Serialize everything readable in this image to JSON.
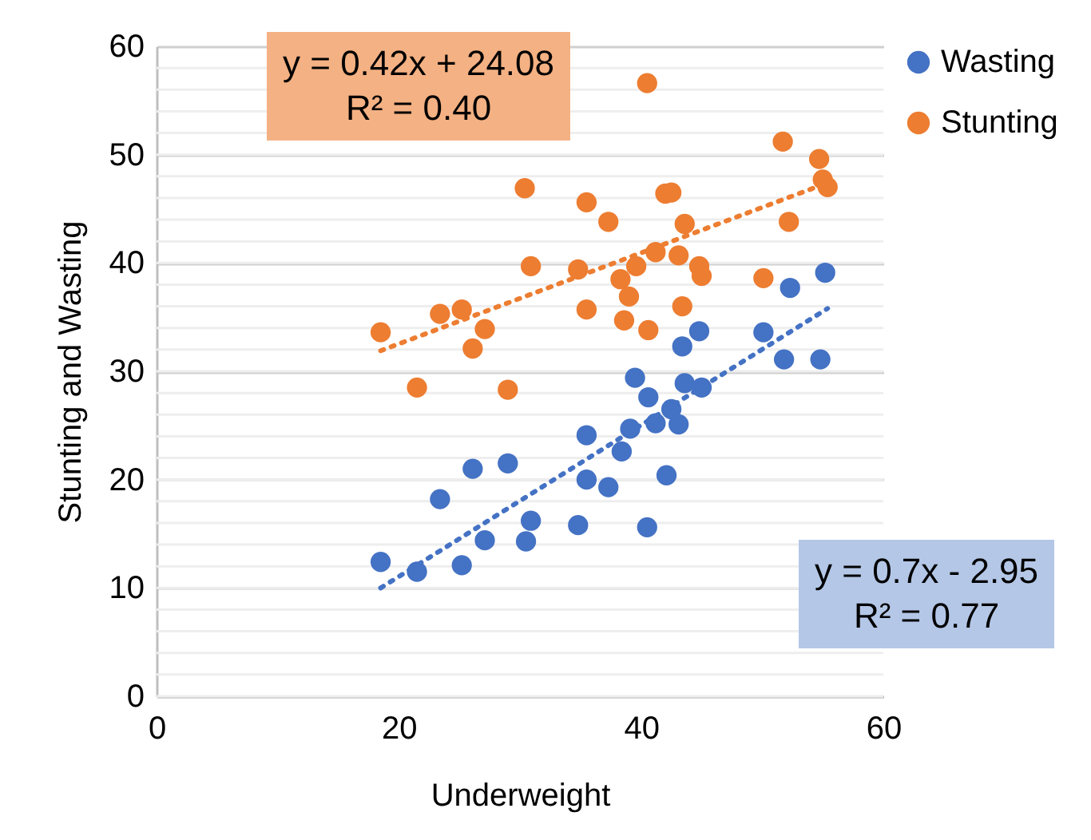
{
  "chart_data": {
    "type": "scatter",
    "xlabel": "Underweight",
    "ylabel": "Stunting and Wasting",
    "xlim": [
      0,
      60
    ],
    "xticks": [
      0,
      20,
      40,
      60
    ],
    "ylim": [
      0,
      60
    ],
    "yticks": [
      0,
      10,
      20,
      30,
      40,
      50,
      60
    ],
    "grid": "y",
    "legend": "right",
    "annotations": [
      "y = 0.42x + 24.08",
      "R² = 0.40",
      "y = 0.7x - 2.95",
      "R² = 0.77"
    ],
    "series": [
      {
        "name": "Wasting",
        "color": "#4472c4",
        "x": [
          18.5,
          21.5,
          23.4,
          25.2,
          26.1,
          27.1,
          29.0,
          30.9,
          30.5,
          34.8,
          35.5,
          35.5,
          37.3,
          38.4,
          39.1,
          39.5,
          40.6,
          40.5,
          41.2,
          42.1,
          42.5,
          43.1,
          43.6,
          45.0,
          43.4,
          44.8,
          50.1,
          51.8,
          54.8,
          52.3,
          55.2
        ],
        "values": [
          12.4,
          11.5,
          18.2,
          12.1,
          21.0,
          14.4,
          21.5,
          16.2,
          14.3,
          15.8,
          20.0,
          24.1,
          19.3,
          22.6,
          24.7,
          29.4,
          27.6,
          15.6,
          25.2,
          20.4,
          26.5,
          25.1,
          28.9,
          28.5,
          32.3,
          33.7,
          33.6,
          31.1,
          31.1,
          37.7,
          39.1
        ]
      },
      {
        "name": "Stunting",
        "color": "#ed7d31",
        "x": [
          18.5,
          21.5,
          23.4,
          25.2,
          26.1,
          27.1,
          29.0,
          30.4,
          30.9,
          35.5,
          34.8,
          35.5,
          37.3,
          38.6,
          38.3,
          39.0,
          39.6,
          40.5,
          40.6,
          41.2,
          42.0,
          42.5,
          43.1,
          43.6,
          43.4,
          44.8,
          45.0,
          50.1,
          51.7,
          52.2,
          54.7,
          55.0,
          55.4
        ],
        "values": [
          33.6,
          28.5,
          35.3,
          35.7,
          32.1,
          33.9,
          28.3,
          46.9,
          39.7,
          35.7,
          39.4,
          45.6,
          43.8,
          34.7,
          38.5,
          36.9,
          39.7,
          56.6,
          33.8,
          41.0,
          46.4,
          46.5,
          40.7,
          43.6,
          36.0,
          39.7,
          38.8,
          38.6,
          51.2,
          43.8,
          49.6,
          47.7,
          47.0
        ]
      },
      {
        "type": "line",
        "color": "#4472c4",
        "line_style": "dotted",
        "x": [
          18.5,
          55.4
        ],
        "values": [
          10.0,
          35.8
        ]
      },
      {
        "type": "line",
        "color": "#ed7d31",
        "line_style": "dotted",
        "x": [
          18.5,
          55.4
        ],
        "values": [
          31.9,
          47.4
        ]
      }
    ]
  }
}
